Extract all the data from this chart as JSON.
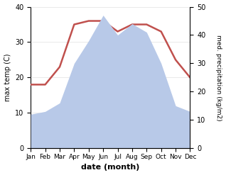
{
  "months": [
    "Jan",
    "Feb",
    "Mar",
    "Apr",
    "May",
    "Jun",
    "Jul",
    "Aug",
    "Sep",
    "Oct",
    "Nov",
    "Dec"
  ],
  "temperature": [
    18,
    18,
    23,
    35,
    36,
    36,
    33,
    35,
    35,
    33,
    25,
    20
  ],
  "precipitation": [
    12,
    13,
    16,
    30,
    38,
    47,
    40,
    44,
    41,
    30,
    15,
    13
  ],
  "temp_color": "#c0504d",
  "precip_fill_color": "#b8c9e8",
  "ylim_temp": [
    0,
    40
  ],
  "ylim_precip": [
    0,
    50
  ],
  "xlabel": "date (month)",
  "ylabel_left": "max temp (C)",
  "ylabel_right": "med. precipitation (kg/m2)",
  "bg_color": "#ffffff",
  "grid_color": "#e0e0e0"
}
